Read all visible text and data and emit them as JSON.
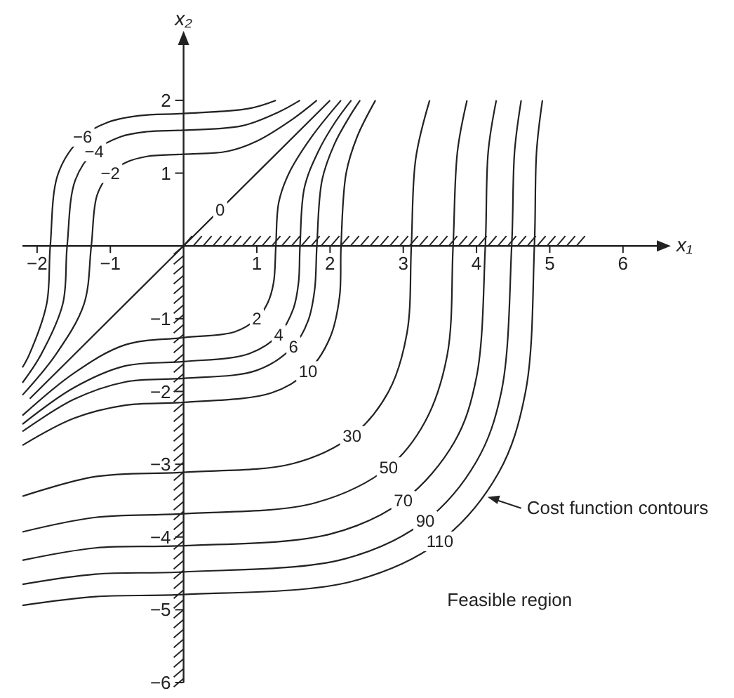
{
  "chart_data": {
    "type": "line",
    "xlabel": "x₁",
    "ylabel": "x₂",
    "xlim": [
      -2.2,
      6.5
    ],
    "ylim": [
      -6,
      2.8
    ],
    "xticks": [
      -2,
      -1,
      1,
      2,
      3,
      4,
      5,
      6
    ],
    "yticks": [
      -6,
      -5,
      -4,
      -3,
      -2,
      -1,
      1,
      2
    ],
    "grid": false,
    "annotations": [
      {
        "text": "Cost function contours",
        "x": 4.15,
        "y": -3.45
      },
      "Feasible region"
    ],
    "series": [
      {
        "name": "−6",
        "color": "#222222",
        "x": [
          -2.2,
          -2.11,
          -1.87,
          -1.82,
          -1.71,
          -1.38,
          -1.03,
          -0.6,
          0,
          0.9,
          1.26
        ],
        "values": [
          -1.67,
          -1.5,
          -0.8,
          0,
          1.0,
          1.5,
          1.7,
          1.79,
          1.82,
          1.89,
          2
        ]
      },
      {
        "name": "−4",
        "color": "#222222",
        "x": [
          -2.2,
          -1.95,
          -1.65,
          -1.59,
          -1.48,
          -1.22,
          -0.86,
          -0.5,
          0,
          0.8,
          1.3,
          1.59
        ],
        "values": [
          -1.88,
          -1.5,
          -0.8,
          0,
          0.9,
          1.3,
          1.5,
          1.57,
          1.59,
          1.65,
          1.84,
          2
        ]
      },
      {
        "name": "−2",
        "color": "#222222",
        "x": [
          -2.2,
          -1.75,
          -1.36,
          -1.26,
          -1.18,
          -1.0,
          -0.78,
          -0.5,
          0,
          0.6,
          1,
          1.5,
          1.82
        ],
        "values": [
          -2.05,
          -1.5,
          -0.8,
          0,
          0.7,
          1.0,
          1.15,
          1.23,
          1.26,
          1.3,
          1.44,
          1.75,
          2
        ]
      },
      {
        "name": "0",
        "color": "#222222",
        "x": [
          -2.1,
          0.5,
          2
        ],
        "values": [
          -2.1,
          0.5,
          2
        ]
      },
      {
        "name": "2",
        "color": "#222222",
        "x": [
          -2.2,
          -1.5,
          -0.8,
          0,
          0.7,
          1.0,
          1.15,
          1.23,
          1.26,
          1.3,
          1.44,
          1.75,
          2.15
        ],
        "values": [
          -2.33,
          -1.75,
          -1.36,
          -1.26,
          -1.18,
          -1.0,
          -0.78,
          -0.5,
          0,
          0.6,
          1,
          1.5,
          2
        ]
      },
      {
        "name": "4",
        "color": "#222222",
        "x": [
          -2.2,
          -1.5,
          -0.8,
          0,
          0.9,
          1.3,
          1.5,
          1.57,
          1.59,
          1.65,
          1.84,
          2.07,
          2.29
        ],
        "values": [
          -2.45,
          -1.95,
          -1.65,
          -1.59,
          -1.48,
          -1.22,
          -0.86,
          -0.5,
          0,
          0.8,
          1.3,
          1.7,
          2
        ]
      },
      {
        "name": "6",
        "color": "#222222",
        "x": [
          -2.2,
          -1.5,
          -0.8,
          0,
          1.0,
          1.5,
          1.7,
          1.79,
          1.82,
          1.89,
          2.06,
          2.28,
          2.41
        ],
        "values": [
          -2.55,
          -2.11,
          -1.87,
          -1.82,
          -1.71,
          -1.38,
          -1.03,
          -0.6,
          0,
          0.9,
          1.4,
          1.8,
          2
        ]
      },
      {
        "name": "10",
        "color": "#222222",
        "x": [
          -2.2,
          -1.5,
          -0.8,
          0,
          1.2,
          1.7,
          2.0,
          2.13,
          2.15,
          2.22,
          2.37,
          2.62
        ],
        "values": [
          -2.74,
          -2.37,
          -2.19,
          -2.15,
          -2.02,
          -1.72,
          -1.26,
          -0.7,
          0,
          1.0,
          1.5,
          2
        ]
      },
      {
        "name": "30",
        "color": "#222222",
        "x": [
          -2.2,
          -1.2,
          0,
          1.5,
          2.3,
          2.8,
          3.05,
          3.11,
          3.17,
          3.36
        ],
        "values": [
          -3.44,
          -3.17,
          -3.11,
          -2.99,
          -2.61,
          -2.0,
          -1.2,
          0,
          1.2,
          2
        ]
      },
      {
        "name": "50",
        "color": "#222222",
        "x": [
          -2.2,
          -1.2,
          0,
          1.8,
          2.8,
          3.3,
          3.6,
          3.68,
          3.74,
          3.87
        ],
        "values": [
          -3.93,
          -3.73,
          -3.68,
          -3.53,
          -3.04,
          -2.41,
          -1.5,
          0,
          1.3,
          2
        ]
      },
      {
        "name": "70",
        "color": "#222222",
        "x": [
          -2.2,
          -1.2,
          0,
          2.0,
          3.0,
          3.7,
          4.0,
          4.12,
          4.16,
          4.27
        ],
        "values": [
          -4.32,
          -4.15,
          -4.12,
          -3.96,
          -3.5,
          -2.69,
          -1.8,
          0,
          1.3,
          2
        ]
      },
      {
        "name": "90",
        "color": "#222222",
        "x": [
          -2.2,
          -1.2,
          0,
          2.2,
          3.3,
          4.0,
          4.34,
          4.48,
          4.52,
          4.61
        ],
        "values": [
          -4.65,
          -4.51,
          -4.48,
          -4.3,
          -3.78,
          -2.96,
          -2.0,
          0,
          1.3,
          2
        ]
      },
      {
        "name": "110",
        "color": "#222222",
        "x": [
          -2.2,
          -1.2,
          0,
          2.3,
          3.5,
          4.3,
          4.67,
          4.79,
          4.82,
          4.9
        ],
        "values": [
          -4.94,
          -4.82,
          -4.79,
          -4.61,
          -4.06,
          -3.12,
          -2.0,
          0,
          1.3,
          2
        ]
      }
    ]
  }
}
